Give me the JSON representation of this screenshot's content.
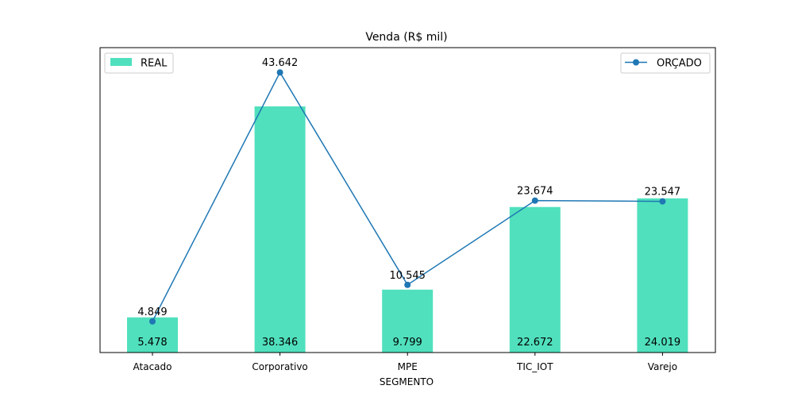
{
  "chart_data": {
    "type": "bar",
    "title": "Venda (R$ mil)",
    "xlabel": "SEGMENTO",
    "ylabel": "",
    "categories": [
      "Atacado",
      "Corporativo",
      "MPE",
      "TIC_IOT",
      "Varejo"
    ],
    "series": [
      {
        "name": "REAL",
        "type": "bar",
        "color": "#50e0bd",
        "values": [
          5.478,
          38.346,
          9.799,
          22.672,
          24.019
        ],
        "labels": [
          "5.478",
          "38.346",
          "9.799",
          "22.672",
          "24.019"
        ],
        "legend": "top-left"
      },
      {
        "name": "ORÇADO",
        "type": "line",
        "color": "#1f77b4",
        "values": [
          4.849,
          43.642,
          10.545,
          23.674,
          23.547
        ],
        "labels": [
          "4.849",
          "43.642",
          "10.545",
          "23.674",
          "23.547"
        ],
        "legend": "top-right"
      }
    ],
    "ylim": [
      0,
      47.5
    ],
    "y_ticks_visible": false,
    "grid": false
  }
}
